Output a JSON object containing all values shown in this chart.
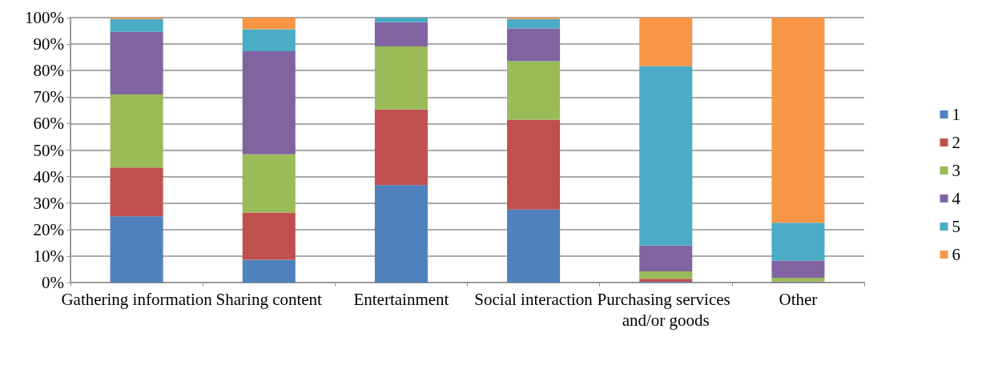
{
  "chart_data": {
    "type": "bar",
    "stacked": true,
    "categories": [
      "Gathering information",
      "Sharing content",
      "Entertainment",
      "Social interaction",
      "Purchasing services and/or goods",
      "Other"
    ],
    "series": [
      {
        "name": "1",
        "color": "#4f81bd",
        "values": [
          25,
          8.6,
          36.8,
          27.6,
          0.3,
          0.2
        ]
      },
      {
        "name": "2",
        "color": "#c0504d",
        "values": [
          18.4,
          17.8,
          28.5,
          33.9,
          1.1,
          0.2
        ]
      },
      {
        "name": "3",
        "color": "#9bbb59",
        "values": [
          27.6,
          22,
          23.8,
          22,
          2.8,
          1.4
        ]
      },
      {
        "name": "4",
        "color": "#8064a2",
        "values": [
          23.6,
          38.9,
          9.2,
          12.4,
          9.8,
          6.5
        ]
      },
      {
        "name": "5",
        "color": "#4bacc6",
        "values": [
          4.9,
          8.3,
          1.7,
          3.6,
          67.7,
          14.3
        ]
      },
      {
        "name": "6",
        "color": "#f79646",
        "values": [
          0.5,
          4.4,
          0,
          0.5,
          18.3,
          77.4
        ]
      }
    ],
    "ylim": [
      0,
      100
    ],
    "yticks": [
      {
        "value": 0,
        "label": "0%"
      },
      {
        "value": 10,
        "label": "10%"
      },
      {
        "value": 20,
        "label": "20%"
      },
      {
        "value": 30,
        "label": "30%"
      },
      {
        "value": 40,
        "label": "40%"
      },
      {
        "value": 50,
        "label": "50%"
      },
      {
        "value": 60,
        "label": "60%"
      },
      {
        "value": 70,
        "label": "70%"
      },
      {
        "value": 80,
        "label": "80%"
      },
      {
        "value": 90,
        "label": "90%"
      },
      {
        "value": 100,
        "label": "100%"
      }
    ],
    "grid": "y",
    "legend": "right"
  }
}
